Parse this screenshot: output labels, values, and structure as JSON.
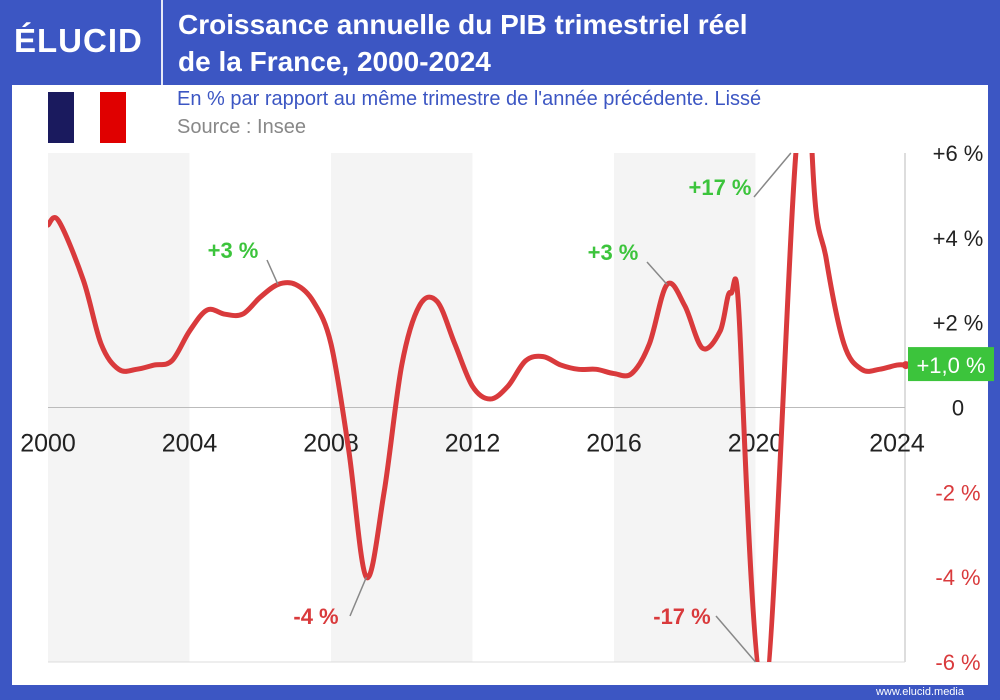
{
  "header": {
    "logo": "ÉLUCID",
    "title_line1": "Croissance annuelle du PIB trimestriel réel",
    "title_line2": "de la France, 2000-2024",
    "subtitle": "En % par rapport au même trimestre de l'année précédente. Lissé",
    "source": "Source : Insee",
    "flag_colors": [
      "#1a1a5e",
      "#ffffff",
      "#e00000"
    ]
  },
  "footer": {
    "url": "www.elucid.media"
  },
  "colors": {
    "brand": "#3c56c3",
    "line": "#d93a3c",
    "positive": "#3cc43c",
    "negative": "#d93a3c"
  },
  "chart_data": {
    "type": "line",
    "title": "Croissance annuelle du PIB trimestriel réel de la France, 2000-2024",
    "xlim": [
      2000,
      2024.3
    ],
    "ylim": [
      -6,
      6
    ],
    "grid": false,
    "x_ticks": [
      "2000",
      "2004",
      "2008",
      "2012",
      "2016",
      "2020",
      "2024"
    ],
    "y_ticks": [
      {
        "v": 6,
        "label": "+6 %"
      },
      {
        "v": 4,
        "label": "+4 %"
      },
      {
        "v": 2,
        "label": "+2 %"
      },
      {
        "v": 0,
        "label": "0"
      },
      {
        "v": -2,
        "label": "-2 %"
      },
      {
        "v": -4,
        "label": "-4 %"
      },
      {
        "v": -6,
        "label": "-6 %"
      }
    ],
    "x": [
      2000,
      2000.3,
      2001,
      2001.5,
      2002,
      2002.5,
      2003,
      2003.5,
      2004,
      2004.5,
      2005,
      2005.5,
      2006,
      2006.5,
      2007,
      2007.5,
      2008,
      2008.5,
      2009,
      2009.5,
      2010,
      2010.5,
      2011,
      2011.5,
      2012,
      2012.5,
      2013,
      2013.5,
      2014,
      2014.5,
      2015,
      2015.5,
      2016,
      2016.5,
      2017,
      2017.5,
      2018,
      2018.5,
      2019,
      2019.3,
      2019.6,
      2020.25,
      2021.25,
      2021.6,
      2022,
      2022.5,
      2023,
      2023.5,
      2024,
      2024.25
    ],
    "y": [
      4.3,
      4.4,
      3.0,
      1.5,
      0.9,
      0.9,
      1.0,
      1.1,
      1.8,
      2.3,
      2.2,
      2.2,
      2.6,
      2.9,
      2.9,
      2.5,
      1.5,
      -1.0,
      -4.0,
      -2.0,
      1.0,
      2.4,
      2.5,
      1.5,
      0.5,
      0.2,
      0.5,
      1.1,
      1.2,
      1.0,
      0.9,
      0.9,
      0.8,
      0.8,
      1.5,
      2.9,
      2.4,
      1.4,
      1.8,
      2.7,
      1.0,
      -17,
      17,
      6,
      3.5,
      1.5,
      0.9,
      0.9,
      1.0,
      1.0
    ],
    "annotations": [
      {
        "text": "+3 %",
        "x": 2006.5,
        "y": 2.9,
        "color": "positive",
        "tx": 233,
        "ty": 258
      },
      {
        "text": "-4 %",
        "x": 2009,
        "y": -4.0,
        "color": "negative",
        "tx": 316,
        "ty": 624
      },
      {
        "text": "+3 %",
        "x": 2017.5,
        "y": 2.9,
        "color": "positive",
        "tx": 613,
        "ty": 260
      },
      {
        "text": "-17 %",
        "x": 2020,
        "y": -6,
        "color": "negative",
        "tx": 682,
        "ty": 624
      },
      {
        "text": "+17 %",
        "x": 2021,
        "y": 6,
        "color": "positive",
        "tx": 720,
        "ty": 195
      }
    ],
    "last_value_label": "+1,0 %"
  }
}
